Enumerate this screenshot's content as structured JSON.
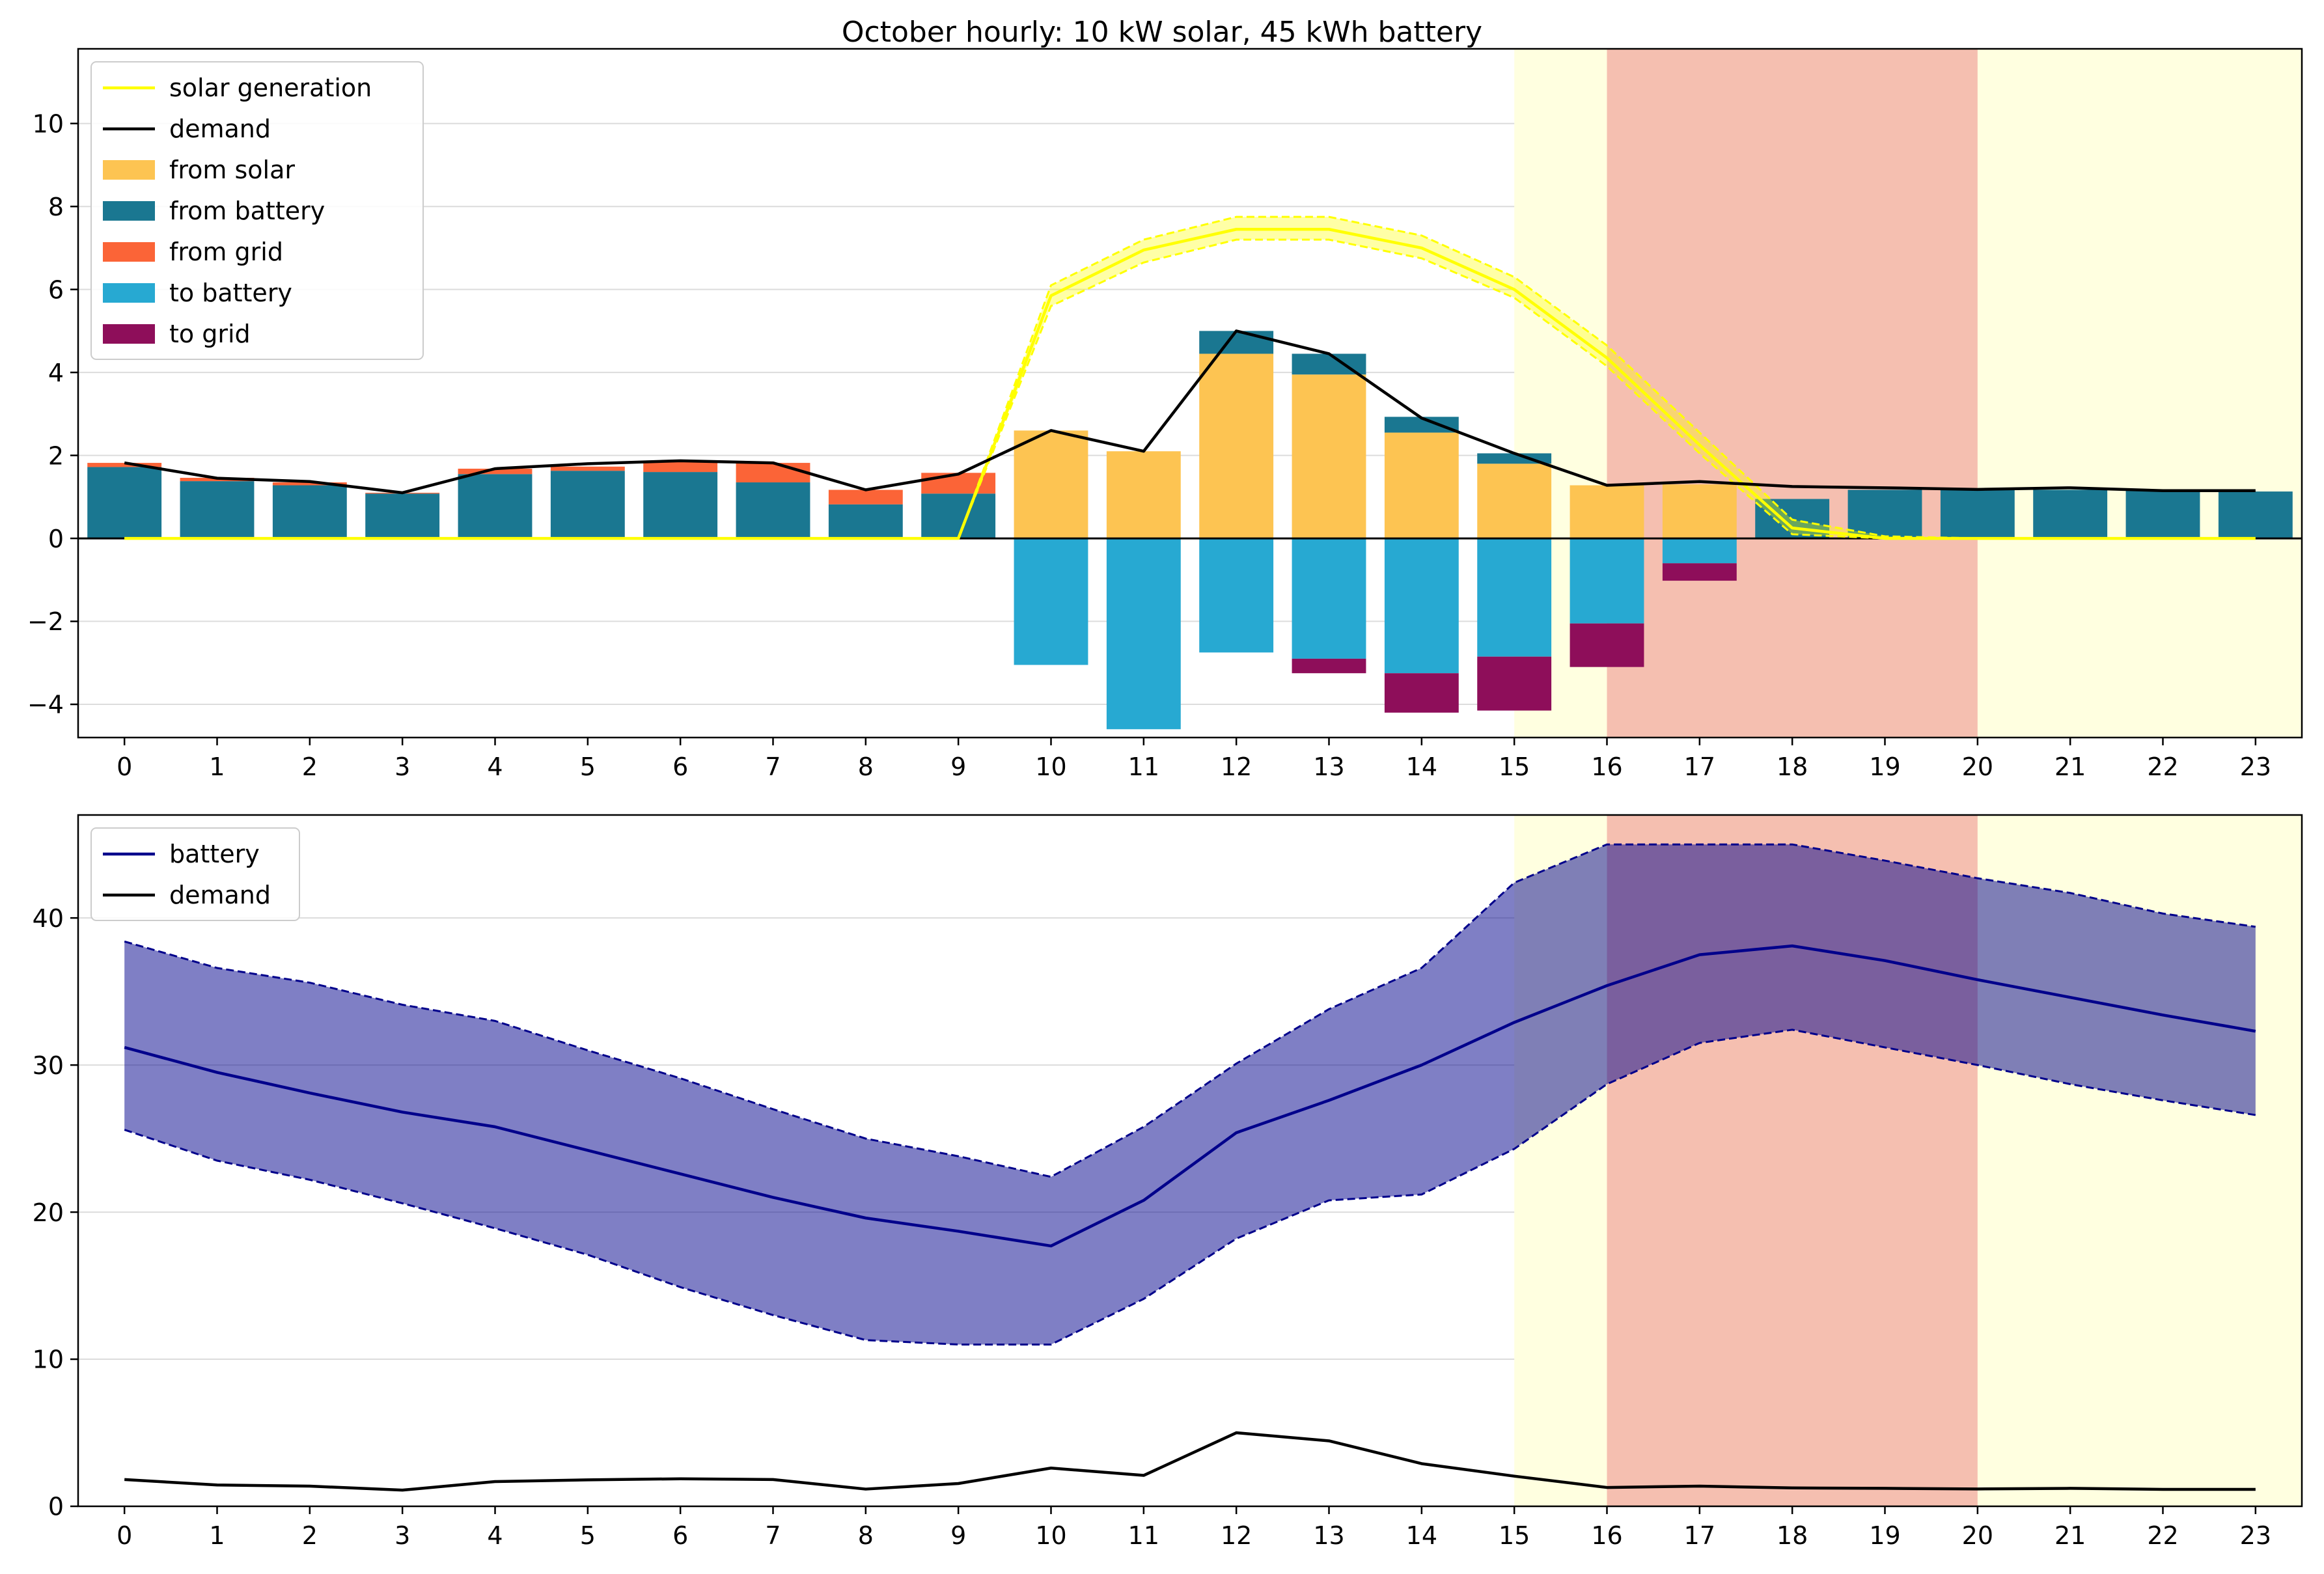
{
  "chart_data": [
    {
      "type": "bar",
      "title": "October hourly: 10 kW solar, 45 kWh battery",
      "xlabel": "",
      "ylabel": "",
      "ylim": [
        -4.8,
        11.8
      ],
      "yticks": [
        -4,
        -2,
        0,
        2,
        4,
        6,
        8,
        10
      ],
      "categories": [
        "0",
        "1",
        "2",
        "3",
        "4",
        "5",
        "6",
        "7",
        "8",
        "9",
        "10",
        "11",
        "12",
        "13",
        "14",
        "15",
        "16",
        "17",
        "18",
        "19",
        "20",
        "21",
        "22",
        "23"
      ],
      "highlight_bands": [
        {
          "from": 15,
          "to": 23.5,
          "color": "#ffffe0"
        },
        {
          "from": 16,
          "to": 20,
          "color": "#f5bfb0"
        }
      ],
      "legend": {
        "placement": "top-left"
      },
      "series": [
        {
          "name": "from solar",
          "kind": "bar",
          "stack": "pos",
          "color": "#fdc452",
          "values": [
            0,
            0,
            0,
            0,
            0,
            0,
            0,
            0,
            0,
            0,
            2.6,
            2.1,
            4.45,
            3.95,
            2.55,
            1.8,
            1.28,
            1.3,
            0,
            0,
            0,
            0,
            0,
            0
          ]
        },
        {
          "name": "from battery",
          "kind": "bar",
          "stack": "pos",
          "color": "#1a7791",
          "values": [
            1.72,
            1.38,
            1.28,
            1.08,
            1.55,
            1.63,
            1.6,
            1.35,
            0.82,
            1.08,
            0,
            0,
            0.55,
            0.5,
            0.38,
            0.25,
            0,
            0,
            0.95,
            1.17,
            1.17,
            1.17,
            1.15,
            1.13
          ]
        },
        {
          "name": "from grid",
          "kind": "bar",
          "stack": "pos",
          "color": "#fb6437",
          "values": [
            0.1,
            0.08,
            0.07,
            0.02,
            0.13,
            0.1,
            0.25,
            0.47,
            0.35,
            0.5,
            0,
            0,
            0,
            0,
            0,
            0,
            0,
            0,
            0,
            0,
            0,
            0,
            0,
            0
          ]
        },
        {
          "name": "to battery",
          "kind": "bar",
          "stack": "neg",
          "color": "#27a9d2",
          "values": [
            0,
            0,
            0,
            0,
            0,
            0,
            0,
            0,
            0,
            0,
            -3.05,
            -4.6,
            -2.75,
            -2.9,
            -3.25,
            -2.85,
            -2.05,
            -0.6,
            0,
            0,
            0,
            0,
            0,
            0
          ]
        },
        {
          "name": "to grid",
          "kind": "bar",
          "stack": "neg",
          "color": "#8e0e5a",
          "values": [
            0,
            0,
            0,
            0,
            0,
            0,
            0,
            0,
            0,
            0,
            0,
            0,
            0,
            -0.35,
            -0.95,
            -1.3,
            -1.05,
            -0.42,
            0,
            0,
            0,
            0,
            0,
            0
          ]
        },
        {
          "name": "solar generation",
          "kind": "line",
          "color": "#ffff00",
          "x": [
            0,
            1,
            2,
            3,
            4,
            5,
            6,
            7,
            8,
            9,
            10,
            11,
            12,
            13,
            14,
            15,
            16,
            17,
            18,
            19,
            20,
            21,
            22,
            23
          ],
          "values": [
            0,
            0,
            0,
            0,
            0,
            0,
            0,
            0,
            0,
            0,
            5.85,
            6.95,
            7.45,
            7.45,
            7.0,
            6.0,
            4.35,
            2.25,
            0.25,
            0,
            0,
            0,
            0,
            0
          ],
          "band_upper": [
            0,
            0,
            0,
            0,
            0,
            0,
            0,
            0,
            0,
            0,
            6.1,
            7.2,
            7.75,
            7.75,
            7.3,
            6.3,
            4.65,
            2.55,
            0.45,
            0.05,
            0,
            0,
            0,
            0
          ],
          "band_lower": [
            0,
            0,
            0,
            0,
            0,
            0,
            0,
            0,
            0,
            0,
            5.6,
            6.65,
            7.2,
            7.2,
            6.75,
            5.8,
            4.15,
            2.05,
            0.1,
            0,
            0,
            0,
            0,
            0
          ]
        },
        {
          "name": "demand",
          "kind": "line",
          "color": "#000000",
          "x": [
            0,
            1,
            2,
            3,
            4,
            5,
            6,
            7,
            8,
            9,
            10,
            11,
            12,
            13,
            14,
            15,
            16,
            17,
            18,
            19,
            20,
            21,
            22,
            23
          ],
          "values": [
            1.82,
            1.45,
            1.37,
            1.1,
            1.68,
            1.8,
            1.87,
            1.82,
            1.17,
            1.55,
            2.6,
            2.1,
            5.0,
            4.45,
            2.9,
            2.05,
            1.28,
            1.37,
            1.25,
            1.22,
            1.18,
            1.22,
            1.15,
            1.15
          ]
        }
      ]
    },
    {
      "type": "line",
      "title": "",
      "xlabel": "",
      "ylabel": "",
      "ylim": [
        0,
        47
      ],
      "yticks": [
        0,
        10,
        20,
        30,
        40
      ],
      "categories": [
        "0",
        "1",
        "2",
        "3",
        "4",
        "5",
        "6",
        "7",
        "8",
        "9",
        "10",
        "11",
        "12",
        "13",
        "14",
        "15",
        "16",
        "17",
        "18",
        "19",
        "20",
        "21",
        "22",
        "23"
      ],
      "highlight_bands": [
        {
          "from": 15,
          "to": 23.5,
          "color": "#ffffe0"
        },
        {
          "from": 16,
          "to": 20,
          "color": "#f5bfb0"
        }
      ],
      "legend": {
        "placement": "top-left"
      },
      "series": [
        {
          "name": "battery",
          "kind": "line",
          "color": "#00008b",
          "x": [
            0,
            1,
            2,
            3,
            4,
            5,
            6,
            7,
            8,
            9,
            10,
            11,
            12,
            13,
            14,
            15,
            16,
            17,
            18,
            19,
            20,
            21,
            22,
            23
          ],
          "values": [
            31.2,
            29.5,
            28.1,
            26.8,
            25.8,
            24.2,
            22.6,
            21.0,
            19.6,
            18.7,
            17.7,
            20.8,
            25.4,
            27.6,
            30.0,
            32.9,
            35.4,
            37.5,
            38.1,
            37.1,
            35.8,
            34.6,
            33.4,
            32.3
          ],
          "band_upper": [
            38.4,
            36.6,
            35.6,
            34.1,
            33.0,
            31.0,
            29.1,
            27.0,
            25.0,
            23.8,
            22.4,
            25.8,
            30.1,
            33.8,
            36.6,
            42.4,
            45.0,
            45.0,
            45.0,
            43.9,
            42.7,
            41.7,
            40.3,
            39.4
          ],
          "band_lower": [
            25.6,
            23.5,
            22.2,
            20.6,
            18.9,
            17.1,
            14.9,
            13.0,
            11.3,
            11.0,
            11.0,
            14.1,
            18.2,
            20.8,
            21.2,
            24.3,
            28.7,
            31.5,
            32.4,
            31.2,
            30.0,
            28.7,
            27.6,
            26.6
          ]
        },
        {
          "name": "demand",
          "kind": "line",
          "color": "#000000",
          "x": [
            0,
            1,
            2,
            3,
            4,
            5,
            6,
            7,
            8,
            9,
            10,
            11,
            12,
            13,
            14,
            15,
            16,
            17,
            18,
            19,
            20,
            21,
            22,
            23
          ],
          "values": [
            1.82,
            1.45,
            1.37,
            1.1,
            1.68,
            1.8,
            1.87,
            1.82,
            1.17,
            1.55,
            2.6,
            2.1,
            5.0,
            4.45,
            2.9,
            2.05,
            1.28,
            1.37,
            1.25,
            1.22,
            1.18,
            1.22,
            1.15,
            1.15
          ]
        }
      ]
    }
  ]
}
